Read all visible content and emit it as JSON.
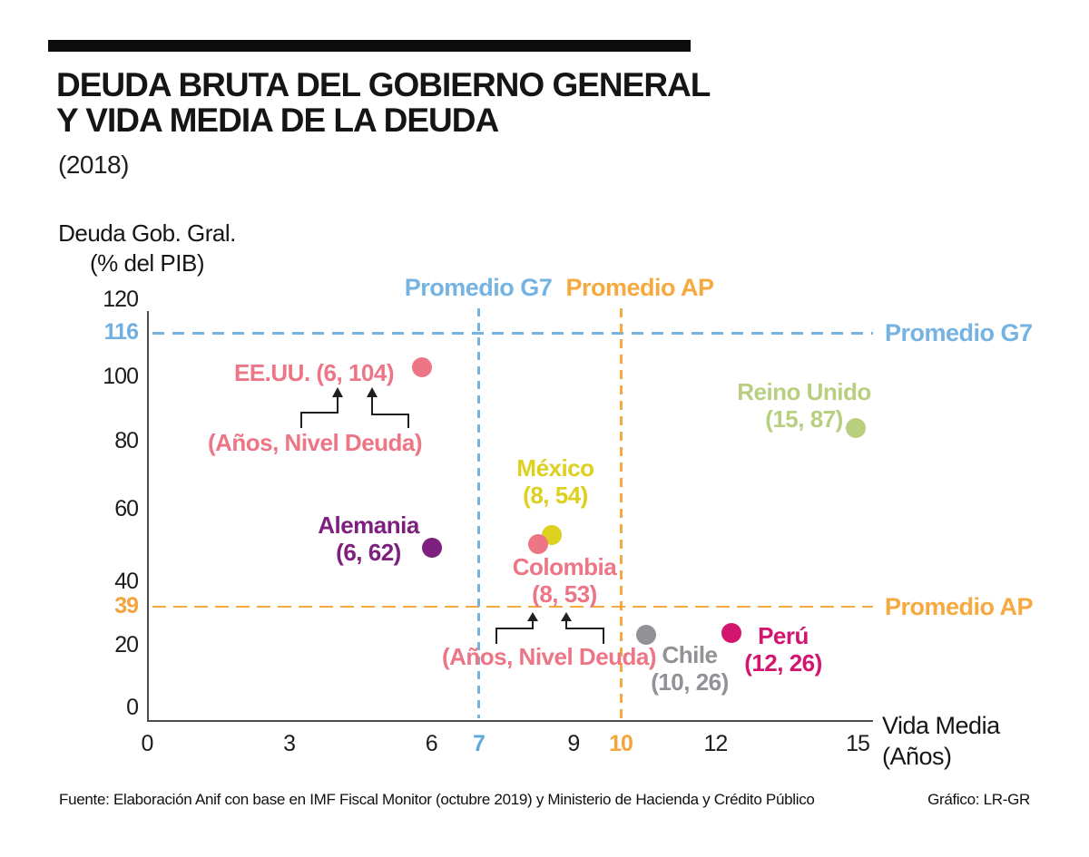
{
  "header": {
    "title_line1": "DEUDA BRUTA DEL GOBIERNO GENERAL",
    "title_line2": "Y VIDA MEDIA DE LA DEUDA",
    "subtitle": "(2018)"
  },
  "axis_labels": {
    "y_title_line1": "Deuda Gob. Gral.",
    "y_title_line2": "(% del PIB)",
    "x_title_line1": "Vida Media",
    "x_title_line2": "(Años)"
  },
  "footer": {
    "source": "Fuente: Elaboración Anif con base en IMF Fiscal Monitor (octubre 2019) y Ministerio de Hacienda y Crédito Público",
    "credit": "Gráfico: LR-GR"
  },
  "chart_data": {
    "type": "scatter",
    "title": "DEUDA BRUTA DEL GOBIERNO GENERAL Y VIDA MEDIA DE LA DEUDA",
    "subtitle": "(2018)",
    "xlabel": "Vida Media (Años)",
    "ylabel": "Deuda Gob. Gral. (% del PIB)",
    "xlim": [
      0,
      15
    ],
    "ylim": [
      0,
      120
    ],
    "grid": false,
    "x_ticks": [
      {
        "label": "0",
        "value": 0
      },
      {
        "label": "3",
        "value": 3
      },
      {
        "label": "6",
        "value": 6
      },
      {
        "label": "7",
        "value": 7,
        "color": "#5fa8dc",
        "bold": true
      },
      {
        "label": "9",
        "value": 9
      },
      {
        "label": "10",
        "value": 10,
        "color": "#f5a33b",
        "bold": true
      },
      {
        "label": "12",
        "value": 12
      },
      {
        "label": "15",
        "value": 15
      }
    ],
    "y_ticks": [
      {
        "label": "120",
        "value": 120
      },
      {
        "label": "116",
        "value": 116,
        "color": "#6fb0e0",
        "bold": true
      },
      {
        "label": "100",
        "value": 100
      },
      {
        "label": "80",
        "value": 80
      },
      {
        "label": "60",
        "value": 60
      },
      {
        "label": "40",
        "value": 40
      },
      {
        "label": "39",
        "value": 39,
        "color": "#f5a33b",
        "bold": true
      },
      {
        "label": "20",
        "value": 20
      },
      {
        "label": "0",
        "value": 0
      }
    ],
    "points": [
      {
        "id": "eeuu",
        "country": "EE.UU.",
        "x": 6,
        "y": 104,
        "color": "#ec7586",
        "label_lines": [
          "EE.UU. (6, 104)"
        ]
      },
      {
        "id": "reino_unido",
        "country": "Reino Unido",
        "x": 15,
        "y": 87,
        "color": "#b8cf80",
        "label_lines": [
          "Reino Unido",
          "(15, 87)"
        ]
      },
      {
        "id": "alemania",
        "country": "Alemania",
        "x": 6,
        "y": 62,
        "color": "#7c1f7e",
        "label_lines": [
          "Alemania",
          "(6, 62)"
        ]
      },
      {
        "id": "mexico",
        "country": "México",
        "x": 8,
        "y": 54,
        "color": "#ddd01e",
        "label_lines": [
          "México",
          "(8, 54)"
        ]
      },
      {
        "id": "colombia",
        "country": "Colombia",
        "x": 8,
        "y": 53,
        "color": "#ec7586",
        "label_lines": [
          "Colombia",
          "(8, 53)"
        ]
      },
      {
        "id": "chile",
        "country": "Chile",
        "x": 10,
        "y": 26,
        "color": "#919196",
        "label_lines": [
          "Chile",
          "(10, 26)"
        ]
      },
      {
        "id": "peru",
        "country": "Perú",
        "x": 12,
        "y": 26,
        "color": "#d41570",
        "label_lines": [
          "Perú",
          "(12, 26)"
        ]
      }
    ],
    "reference_lines": [
      {
        "id": "g7_debt",
        "orientation": "horizontal",
        "value": 116,
        "label": "Promedio G7",
        "color": "#74b3e2",
        "label_position": "right"
      },
      {
        "id": "ap_debt",
        "orientation": "horizontal",
        "value": 39,
        "label": "Promedio AP",
        "color": "#f6a93f",
        "label_position": "right"
      },
      {
        "id": "g7_life",
        "orientation": "vertical",
        "value": 7,
        "label": "Promedio G7",
        "color": "#74b3e2",
        "label_position": "top"
      },
      {
        "id": "ap_life",
        "orientation": "vertical",
        "value": 10,
        "label": "Promedio AP",
        "color": "#f6a93f",
        "label_position": "top"
      }
    ],
    "annotations": [
      {
        "id": "top",
        "text": "(Años, Nivel Deuda)"
      },
      {
        "id": "bottom",
        "text": "(Años, Nivel Deuda)"
      }
    ]
  }
}
